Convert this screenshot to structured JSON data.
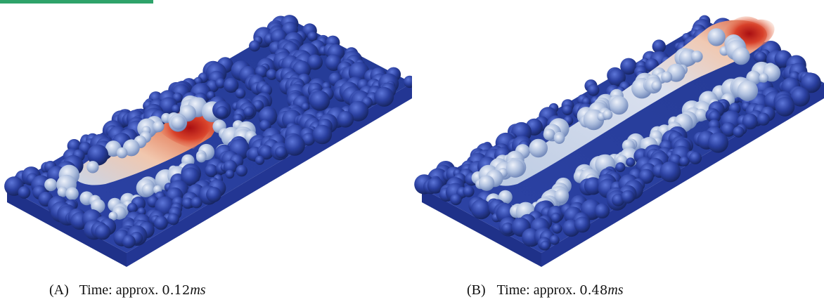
{
  "colors": {
    "accent_bar": "#2ea36a",
    "powder_blue": "#24389a",
    "plate_blue": "#2a3f9f",
    "hot_red": "#c8201c",
    "cooled_light": "#c9d6ea"
  },
  "captions": [
    {
      "label": "(A)",
      "text": "Time: approx.",
      "value": "0.12",
      "unit": "ms"
    },
    {
      "label": "(B)",
      "text": "Time: approx.",
      "value": "0.48",
      "unit": "ms"
    }
  ]
}
